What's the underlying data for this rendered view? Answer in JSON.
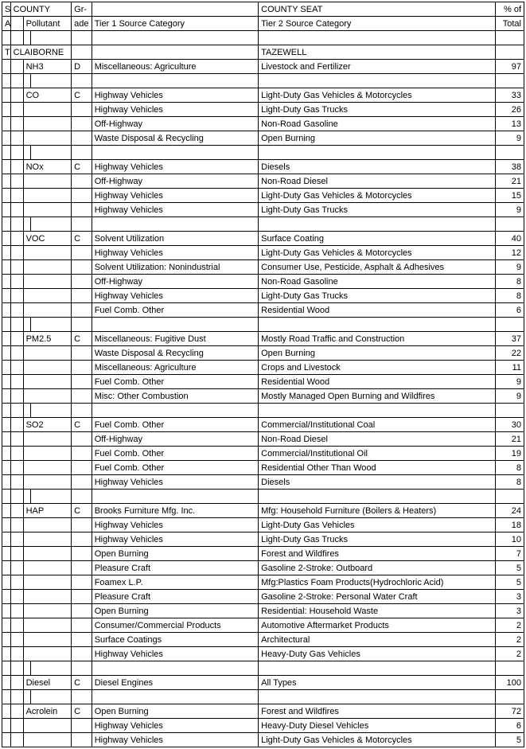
{
  "header": {
    "r1": [
      "ST-",
      "COUNTY",
      "",
      "Gr-",
      "",
      "COUNTY SEAT",
      "% of"
    ],
    "r2": [
      "ATE",
      "",
      "Pollutant",
      "ade",
      "Tier 1 Source Category",
      "Tier 2 Source Category",
      "Total"
    ]
  },
  "state": "TN",
  "county": "CLAIBORNE",
  "seat": "TAZEWELL",
  "rows": [
    {
      "pol": "NH3",
      "gr": "D",
      "t1": "Miscellaneous: Agriculture",
      "t2": "Livestock and Fertilizer",
      "pct": "97"
    },
    {
      "blank": true
    },
    {
      "pol": "CO",
      "gr": "C",
      "t1": "Highway Vehicles",
      "t2": "Light-Duty Gas Vehicles & Motorcycles",
      "pct": "33"
    },
    {
      "t1": "Highway Vehicles",
      "t2": "Light-Duty Gas Trucks",
      "pct": "26"
    },
    {
      "t1": "Off-Highway",
      "t2": "Non-Road Gasoline",
      "pct": "13"
    },
    {
      "t1": "Waste Disposal & Recycling",
      "t2": "Open Burning",
      "pct": "9"
    },
    {
      "blank": true
    },
    {
      "pol": "NOx",
      "gr": "C",
      "t1": "Highway Vehicles",
      "t2": "Diesels",
      "pct": "38"
    },
    {
      "t1": "Off-Highway",
      "t2": "Non-Road Diesel",
      "pct": "21"
    },
    {
      "t1": "Highway Vehicles",
      "t2": "Light-Duty Gas Vehicles & Motorcycles",
      "pct": "15"
    },
    {
      "t1": "Highway Vehicles",
      "t2": "Light-Duty Gas Trucks",
      "pct": "9"
    },
    {
      "blank": true
    },
    {
      "pol": "VOC",
      "gr": "C",
      "t1": "Solvent Utilization",
      "t2": "Surface Coating",
      "pct": "40"
    },
    {
      "t1": "Highway Vehicles",
      "t2": "Light-Duty Gas Vehicles & Motorcycles",
      "pct": "12"
    },
    {
      "t1": "Solvent Utilization: Nonindustrial",
      "t2": "Consumer Use, Pesticide, Asphalt & Adhesives",
      "pct": "9"
    },
    {
      "t1": "Off-Highway",
      "t2": "Non-Road Gasoline",
      "pct": "8"
    },
    {
      "t1": "Highway Vehicles",
      "t2": "Light-Duty Gas Trucks",
      "pct": "8"
    },
    {
      "t1": "Fuel Comb. Other",
      "t2": "Residential Wood",
      "pct": "6"
    },
    {
      "blank": true
    },
    {
      "pol": "PM2.5",
      "gr": "C",
      "t1": "Miscellaneous: Fugitive Dust",
      "t2": "Mostly Road Traffic and Construction",
      "pct": "37"
    },
    {
      "t1": "Waste Disposal & Recycling",
      "t2": "Open Burning",
      "pct": "22"
    },
    {
      "t1": "Miscellaneous: Agriculture",
      "t2": "Crops and Livestock",
      "pct": "11"
    },
    {
      "t1": "Fuel Comb. Other",
      "t2": "Residential Wood",
      "pct": "9"
    },
    {
      "t1": "Misc: Other Combustion",
      "t2": "Mostly Managed Open Burning and Wildfires",
      "pct": "9"
    },
    {
      "blank": true
    },
    {
      "pol": "SO2",
      "gr": "C",
      "t1": "Fuel Comb. Other",
      "t2": "Commercial/Institutional Coal",
      "pct": "30"
    },
    {
      "t1": "Off-Highway",
      "t2": "Non-Road Diesel",
      "pct": "21"
    },
    {
      "t1": "Fuel Comb. Other",
      "t2": "Commercial/Institutional Oil",
      "pct": "19"
    },
    {
      "t1": "Fuel Comb. Other",
      "t2": "Residential Other Than Wood",
      "pct": "8"
    },
    {
      "t1": "Highway Vehicles",
      "t2": "Diesels",
      "pct": "8"
    },
    {
      "blank": true
    },
    {
      "pol": "HAP",
      "gr": "C",
      "t1": "Brooks Furniture Mfg. Inc.",
      "t2": "Mfg: Household Furniture (Boilers &  Heaters)",
      "pct": "24"
    },
    {
      "t1": "Highway Vehicles",
      "t2": "Light-Duty Gas Vehicles",
      "pct": "18"
    },
    {
      "t1": "Highway Vehicles",
      "t2": "Light-Duty Gas Trucks",
      "pct": "10"
    },
    {
      "t1": "Open Burning",
      "t2": "Forest and Wildfires",
      "pct": "7"
    },
    {
      "t1": "Pleasure Craft",
      "t2": "Gasoline 2-Stroke: Outboard",
      "pct": "5"
    },
    {
      "t1": "Foamex L.P.",
      "t2": "Mfg:Plastics Foam Products(Hydrochloric Acid)",
      "pct": "5"
    },
    {
      "t1": "Pleasure Craft",
      "t2": "Gasoline 2-Stroke: Personal Water Craft",
      "pct": "3"
    },
    {
      "t1": "Open Burning",
      "t2": "Residential: Household Waste",
      "pct": "3"
    },
    {
      "t1": "Consumer/Commercial Products",
      "t2": "Automotive Aftermarket Products",
      "pct": "2"
    },
    {
      "t1": "Surface Coatings",
      "t2": "Architectural",
      "pct": "2"
    },
    {
      "t1": "Highway Vehicles",
      "t2": "Heavy-Duty Gas Vehicles",
      "pct": "2"
    },
    {
      "blank": true
    },
    {
      "pol": "Diesel",
      "gr": "C",
      "t1": "Diesel Engines",
      "t2": "All Types",
      "pct": "100"
    },
    {
      "blank": true
    },
    {
      "pol": "Acrolein",
      "gr": "C",
      "t1": "Open Burning",
      "t2": "Forest and Wildfires",
      "pct": "72"
    },
    {
      "t1": "Highway Vehicles",
      "t2": "Heavy-Duty Diesel Vehicles",
      "pct": "6"
    },
    {
      "t1": "Highway Vehicles",
      "t2": "Light-Duty Gas Vehicles & Motorcycles",
      "pct": "5"
    }
  ]
}
